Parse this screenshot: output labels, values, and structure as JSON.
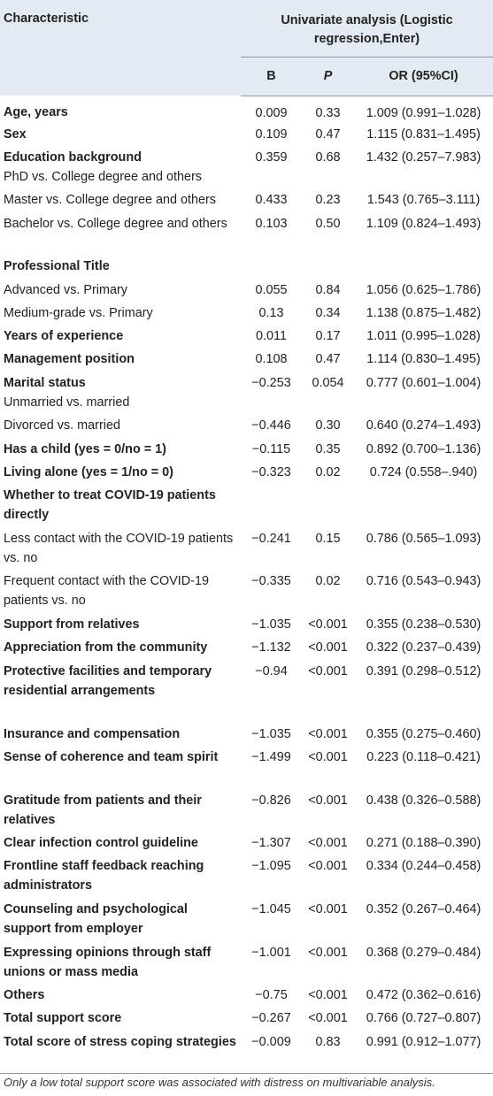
{
  "header": {
    "characteristic": "Characteristic",
    "group_title": "Univariate analysis (Logistic regression,Enter)",
    "col_b": "B",
    "col_p": "P",
    "col_or": "OR (95%CI)"
  },
  "rows": [
    {
      "label": "Age, years",
      "bold": true,
      "b": "0.009",
      "p": "0.33",
      "or": "1.009 (0.991–1.028)"
    },
    {
      "label": "Sex",
      "bold": true,
      "b": "0.109",
      "p": "0.47",
      "or": "1.115 (0.831–1.495)"
    },
    {
      "label": "Education background",
      "bold": true,
      "sub": "PhD vs. College degree and others",
      "b": "0.359",
      "p": "0.68",
      "or": "1.432 (0.257–7.983)"
    },
    {
      "label": "Master vs. College degree and others",
      "bold": false,
      "b": "0.433",
      "p": "0.23",
      "or": "1.543 (0.765–3.111)"
    },
    {
      "label": "Bachelor vs. College degree and others",
      "bold": false,
      "b": "0.103",
      "p": "0.50",
      "or": "1.109 (0.824–1.493)"
    },
    {
      "label": "Professional Title",
      "bold": true,
      "b": "",
      "p": "",
      "or": ""
    },
    {
      "label": "Advanced vs. Primary",
      "bold": false,
      "b": "0.055",
      "p": "0.84",
      "or": "1.056 (0.625–1.786)"
    },
    {
      "label": "Medium-grade vs. Primary",
      "bold": false,
      "b": "0.13",
      "p": "0.34",
      "or": "1.138 (0.875–1.482)"
    },
    {
      "label": "Years of experience",
      "bold": true,
      "b": "0.011",
      "p": "0.17",
      "or": "1.011 (0.995–1.028)"
    },
    {
      "label": "Management position",
      "bold": true,
      "b": "0.108",
      "p": "0.47",
      "or": "1.114 (0.830–1.495)"
    },
    {
      "label": "Marital status",
      "bold": true,
      "sub": "Unmarried vs. married",
      "b": "−0.253",
      "p": "0.054",
      "or": "0.777 (0.601–1.004)"
    },
    {
      "label": "Divorced vs. married",
      "bold": false,
      "b": "−0.446",
      "p": "0.30",
      "or": "0.640 (0.274–1.493)"
    },
    {
      "label": "Has a child (yes = 0/no = 1)",
      "bold": true,
      "b": "−0.115",
      "p": "0.35",
      "or": "0.892 (0.700–1.136)"
    },
    {
      "label": "Living alone (yes = 1/no = 0)",
      "bold": true,
      "b": "−0.323",
      "p": "0.02",
      "or": "0.724 (0.558–.940)"
    },
    {
      "label": "Whether to treat COVID-19 patients directly",
      "bold": true,
      "b": "",
      "p": "",
      "or": ""
    },
    {
      "label": "Less contact with the COVID-19 patients vs. no",
      "bold": false,
      "b": "−0.241",
      "p": "0.15",
      "or": "0.786 (0.565–1.093)"
    },
    {
      "label": "Frequent contact with the COVID-19 patients vs. no",
      "bold": false,
      "b": "−0.335",
      "p": "0.02",
      "or": "0.716 (0.543–0.943)"
    },
    {
      "label": "Support from relatives",
      "bold": true,
      "b": "−1.035",
      "p": "<0.001",
      "or": "0.355 (0.238–0.530)"
    },
    {
      "label": "Appreciation from the community",
      "bold": true,
      "b": "−1.132",
      "p": "<0.001",
      "or": "0.322 (0.237–0.439)"
    },
    {
      "label": "Protective facilities and temporary residential arrangements",
      "bold": true,
      "b": "−0.94",
      "p": "<0.001",
      "or": "0.391 (0.298–0.512)"
    },
    {
      "label": "Insurance and compensation",
      "bold": true,
      "b": "−1.035",
      "p": "<0.001",
      "or": "0.355 (0.275–0.460)"
    },
    {
      "label": "Sense of coherence and team spirit",
      "bold": true,
      "b": "−1.499",
      "p": "<0.001",
      "or": "0.223 (0.118–0.421)"
    },
    {
      "label": "Gratitude from patients and their relatives",
      "bold": true,
      "b": "−0.826",
      "p": "<0.001",
      "or": "0.438 (0.326–0.588)"
    },
    {
      "label": "Clear infection control guideline",
      "bold": true,
      "b": "−1.307",
      "p": "<0.001",
      "or": "0.271 (0.188–0.390)"
    },
    {
      "label": "Frontline staff feedback reaching administrators",
      "bold": true,
      "b": "−1.095",
      "p": "<0.001",
      "or": "0.334 (0.244–0.458)"
    },
    {
      "label": "Counseling and psychological support from employer",
      "bold": true,
      "b": "−1.045",
      "p": "<0.001",
      "or": "0.352 (0.267–0.464)"
    },
    {
      "label": "Expressing opinions through staff unions or mass media",
      "bold": true,
      "b": "−1.001",
      "p": "<0.001",
      "or": "0.368 (0.279–0.484)"
    },
    {
      "label": "Others",
      "bold": true,
      "b": "−0.75",
      "p": "<0.001",
      "or": "0.472 (0.362–0.616)"
    },
    {
      "label": "Total support score",
      "bold": true,
      "b": "−0.267",
      "p": "<0.001",
      "or": "0.766 (0.727–0.807)"
    },
    {
      "label": "Total score of stress coping strategies",
      "bold": true,
      "b": "−0.009",
      "p": "0.83",
      "or": "0.991 (0.912–1.077)"
    }
  ],
  "footnote": "Only a low total support score was associated with distress on multivariable analysis."
}
